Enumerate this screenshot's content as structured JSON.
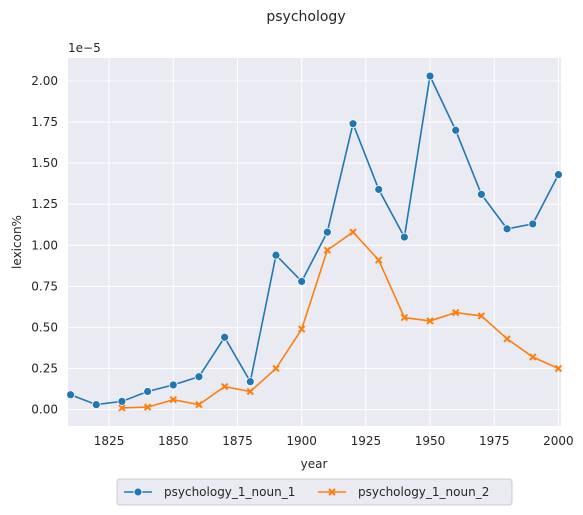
{
  "chart_data": {
    "type": "line",
    "title": "psychology",
    "xlabel": "year",
    "ylabel": "lexicon%",
    "y_offset_label": "1e−5",
    "xlim": [
      1809,
      2001
    ],
    "ylim": [
      -0.1,
      2.14
    ],
    "x_ticks": [
      1825,
      1850,
      1875,
      1900,
      1925,
      1950,
      1975,
      2000
    ],
    "y_ticks": [
      0.0,
      0.25,
      0.5,
      0.75,
      1.0,
      1.25,
      1.5,
      1.75,
      2.0
    ],
    "y_tick_labels": [
      "0.00",
      "0.25",
      "0.50",
      "0.75",
      "1.00",
      "1.25",
      "1.50",
      "1.75",
      "2.00"
    ],
    "grid": true,
    "legend_position": "bottom-center",
    "series": [
      {
        "name": "psychology_1_noun_1",
        "color": "#1f77b4",
        "marker": "circle",
        "x": [
          1810,
          1820,
          1830,
          1840,
          1850,
          1860,
          1870,
          1880,
          1890,
          1900,
          1910,
          1920,
          1930,
          1940,
          1950,
          1960,
          1970,
          1980,
          1990,
          2000
        ],
        "y": [
          0.09,
          0.03,
          0.05,
          0.11,
          0.15,
          0.2,
          0.44,
          0.17,
          0.94,
          0.78,
          1.08,
          1.74,
          1.34,
          1.05,
          2.03,
          1.7,
          1.31,
          1.1,
          1.13,
          1.43
        ]
      },
      {
        "name": "psychology_1_noun_2",
        "color": "#ff7f0e",
        "marker": "x",
        "x": [
          1830,
          1840,
          1850,
          1860,
          1870,
          1880,
          1890,
          1900,
          1910,
          1920,
          1930,
          1940,
          1950,
          1960,
          1970,
          1980,
          1990,
          2000
        ],
        "y": [
          0.01,
          0.015,
          0.06,
          0.03,
          0.14,
          0.11,
          0.25,
          0.49,
          0.97,
          1.08,
          0.91,
          0.56,
          0.54,
          0.59,
          0.57,
          0.43,
          0.32,
          0.25
        ]
      }
    ]
  }
}
